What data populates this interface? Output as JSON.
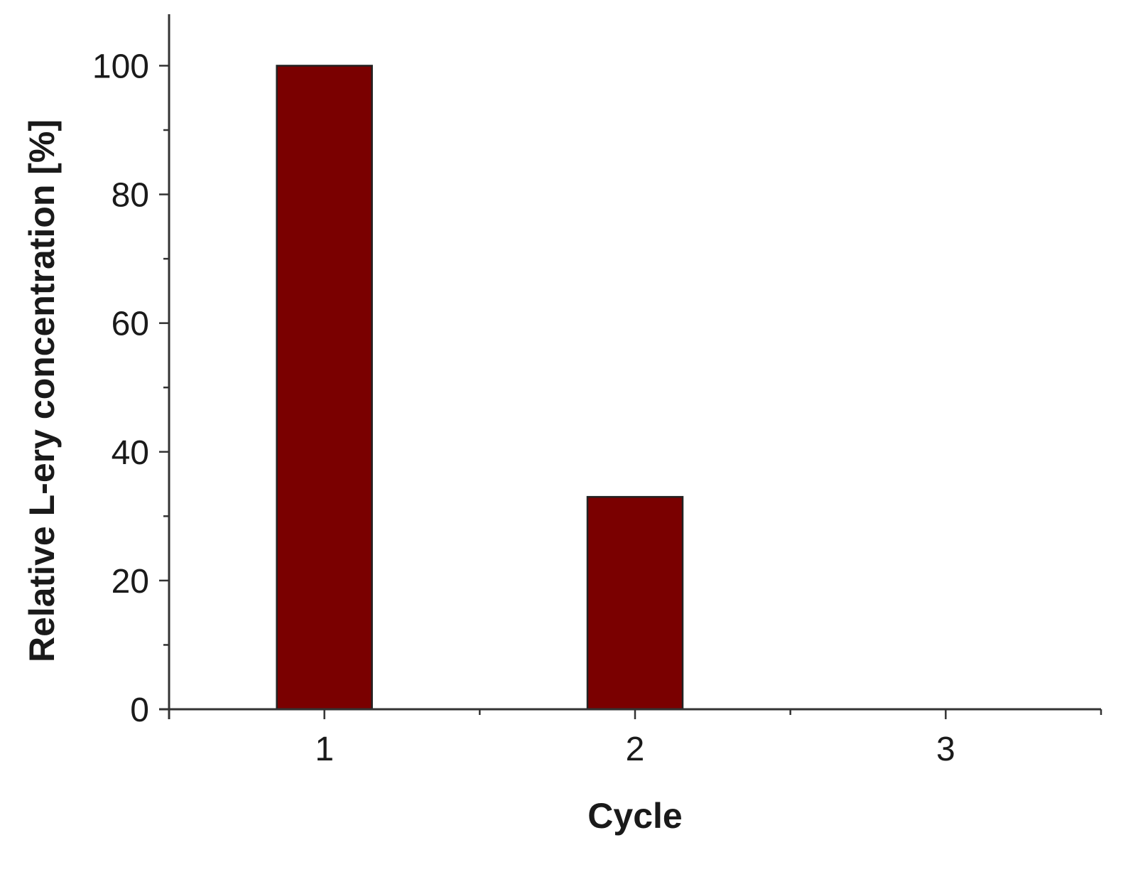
{
  "chart_data": {
    "type": "bar",
    "title": "",
    "xlabel": "Cycle",
    "ylabel": "Relative L-ery concentration [%]",
    "categories": [
      "1",
      "2",
      "3"
    ],
    "values": [
      100,
      33,
      0
    ],
    "ylim": [
      0,
      108
    ],
    "yticks": [
      0,
      20,
      40,
      60,
      80,
      100
    ],
    "y_minor_step": 10,
    "bar_color": "#7a0000",
    "grid": false,
    "legend": "none"
  }
}
